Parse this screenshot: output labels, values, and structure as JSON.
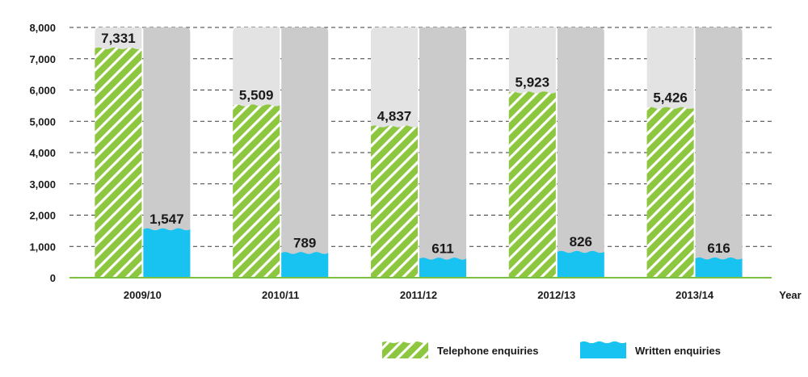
{
  "chart_data": {
    "type": "bar",
    "categories": [
      "2009/10",
      "2010/11",
      "2011/12",
      "2012/13",
      "2013/14"
    ],
    "series": [
      {
        "name": "Telephone enquiries",
        "values": [
          7331,
          5509,
          4837,
          5923,
          5426
        ],
        "labels": [
          "7,331",
          "5,509",
          "4,837",
          "5,923",
          "5,426"
        ],
        "color": "#8dc63f",
        "pattern": "hatched"
      },
      {
        "name": "Written enquiries",
        "values": [
          1547,
          789,
          611,
          826,
          616
        ],
        "labels": [
          "1,547",
          "789",
          "611",
          "826",
          "616"
        ],
        "color": "#19c3f1",
        "pattern": "wave-top"
      }
    ],
    "background_bar_colors": [
      "#e3e3e3",
      "#cbcbcb"
    ],
    "ylim": [
      0,
      8000
    ],
    "yticks": [
      0,
      1000,
      2000,
      3000,
      4000,
      5000,
      6000,
      7000,
      8000
    ],
    "ytick_labels": [
      "0",
      "1,000",
      "2,000",
      "3,000",
      "4,000",
      "5,000",
      "6,000",
      "7,000",
      "8,000"
    ],
    "xlabel": "Year",
    "ylabel": "",
    "grid": "horizontal dashed",
    "axis_color": "#7ac143",
    "legend_position": "bottom-right"
  }
}
